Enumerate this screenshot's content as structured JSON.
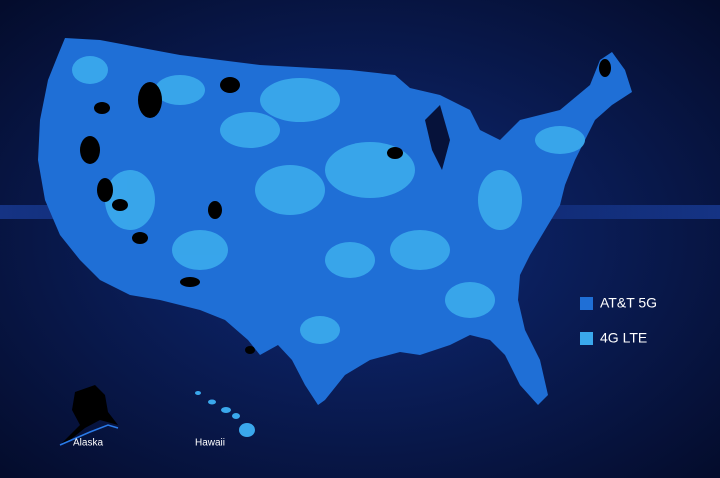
{
  "legend": [
    {
      "label": "AT&T 5G",
      "color": "#1f6fd6"
    },
    {
      "label": "4G LTE",
      "color": "#3aa8ec"
    }
  ],
  "insets": [
    {
      "label": "Alaska"
    },
    {
      "label": "Hawaii"
    }
  ]
}
